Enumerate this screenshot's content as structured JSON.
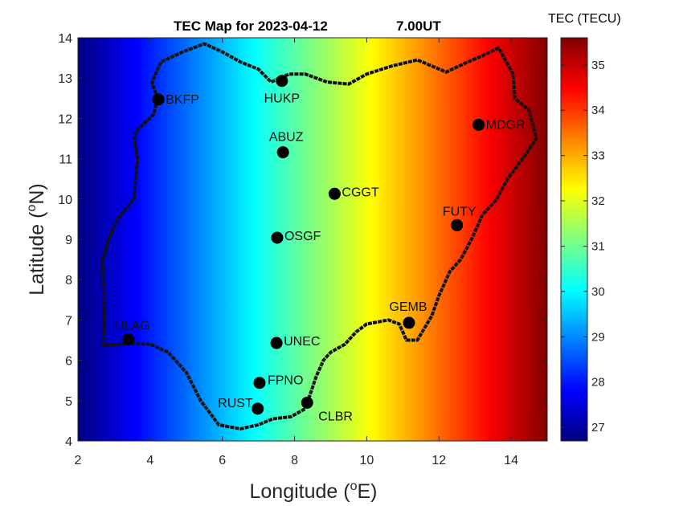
{
  "chart_data": {
    "type": "heatmap",
    "title_main": "TEC Map for 2023-04-12",
    "title_time": "7.00UT",
    "xlabel_base": "Longitude (",
    "xlabel_sup": "o",
    "xlabel_tail": "E)",
    "ylabel_base": "Latitude (",
    "ylabel_sup": "o",
    "ylabel_tail": "N)",
    "colorbar_label": "TEC (TECU)",
    "xlim": [
      2,
      15
    ],
    "ylim": [
      4,
      14
    ],
    "xticks": [
      2,
      4,
      6,
      8,
      10,
      12,
      14
    ],
    "yticks": [
      4,
      5,
      6,
      7,
      8,
      9,
      10,
      11,
      12,
      13,
      14
    ],
    "clim": [
      26.7,
      35.6
    ],
    "cticks": [
      27,
      28,
      29,
      30,
      31,
      32,
      33,
      34,
      35
    ],
    "colormap": "jet",
    "gradient_note": "TEC increases eastward with longitude",
    "tec_at_lon": [
      [
        2,
        26.7
      ],
      [
        15,
        35.6
      ]
    ],
    "stations": [
      {
        "name": "BKFP",
        "lon": 4.23,
        "lat": 12.47
      },
      {
        "name": "HUKP",
        "lon": 7.65,
        "lat": 12.93
      },
      {
        "name": "MDGR",
        "lon": 13.1,
        "lat": 11.84
      },
      {
        "name": "ABUZ",
        "lon": 7.68,
        "lat": 11.16
      },
      {
        "name": "CGGT",
        "lon": 9.11,
        "lat": 10.13
      },
      {
        "name": "FUTY",
        "lon": 12.5,
        "lat": 9.35
      },
      {
        "name": "OSGF",
        "lon": 7.52,
        "lat": 9.04
      },
      {
        "name": "GEMB",
        "lon": 11.17,
        "lat": 6.93
      },
      {
        "name": "ULAG",
        "lon": 3.4,
        "lat": 6.52
      },
      {
        "name": "UNEC",
        "lon": 7.5,
        "lat": 6.43
      },
      {
        "name": "FPNO",
        "lon": 7.03,
        "lat": 5.44
      },
      {
        "name": "CLBR",
        "lon": 8.35,
        "lat": 4.95
      },
      {
        "name": "RUST",
        "lon": 6.98,
        "lat": 4.8
      }
    ],
    "boundary": [
      [
        2.7,
        6.37
      ],
      [
        2.72,
        6.9
      ],
      [
        2.72,
        7.5
      ],
      [
        2.7,
        8.0
      ],
      [
        2.69,
        8.5
      ],
      [
        2.85,
        9.0
      ],
      [
        3.1,
        9.5
      ],
      [
        3.55,
        10.0
      ],
      [
        3.6,
        10.5
      ],
      [
        3.65,
        11.0
      ],
      [
        3.57,
        11.5
      ],
      [
        3.62,
        11.7
      ],
      [
        4.1,
        12.1
      ],
      [
        4.2,
        12.5
      ],
      [
        4.05,
        12.9
      ],
      [
        4.3,
        13.4
      ],
      [
        4.9,
        13.65
      ],
      [
        5.5,
        13.85
      ],
      [
        6.0,
        13.65
      ],
      [
        6.5,
        13.4
      ],
      [
        7.0,
        13.22
      ],
      [
        7.35,
        12.9
      ],
      [
        7.85,
        13.1
      ],
      [
        8.3,
        13.1
      ],
      [
        8.9,
        12.9
      ],
      [
        9.5,
        12.85
      ],
      [
        10.0,
        13.1
      ],
      [
        10.7,
        13.3
      ],
      [
        11.4,
        13.45
      ],
      [
        12.2,
        13.15
      ],
      [
        12.8,
        13.4
      ],
      [
        13.2,
        13.55
      ],
      [
        13.65,
        13.75
      ],
      [
        14.05,
        13.1
      ],
      [
        14.1,
        12.5
      ],
      [
        14.5,
        12.2
      ],
      [
        14.7,
        11.5
      ],
      [
        14.4,
        11.1
      ],
      [
        13.9,
        10.5
      ],
      [
        13.6,
        10.0
      ],
      [
        13.2,
        9.6
      ],
      [
        12.9,
        9.0
      ],
      [
        12.6,
        8.5
      ],
      [
        12.3,
        8.2
      ],
      [
        12.0,
        7.6
      ],
      [
        11.8,
        7.1
      ],
      [
        11.6,
        6.8
      ],
      [
        11.4,
        6.5
      ],
      [
        11.1,
        6.5
      ],
      [
        10.9,
        6.9
      ],
      [
        10.6,
        7.0
      ],
      [
        10.0,
        6.9
      ],
      [
        9.7,
        6.7
      ],
      [
        9.4,
        6.4
      ],
      [
        9.0,
        6.2
      ],
      [
        8.8,
        6.0
      ],
      [
        8.6,
        5.6
      ],
      [
        8.3,
        4.8
      ],
      [
        7.9,
        4.6
      ],
      [
        7.4,
        4.55
      ],
      [
        7.0,
        4.4
      ],
      [
        6.5,
        4.3
      ],
      [
        5.9,
        4.4
      ],
      [
        5.4,
        5.0
      ],
      [
        5.0,
        5.7
      ],
      [
        4.5,
        6.2
      ],
      [
        4.0,
        6.4
      ],
      [
        3.4,
        6.41
      ],
      [
        2.7,
        6.37
      ]
    ]
  }
}
